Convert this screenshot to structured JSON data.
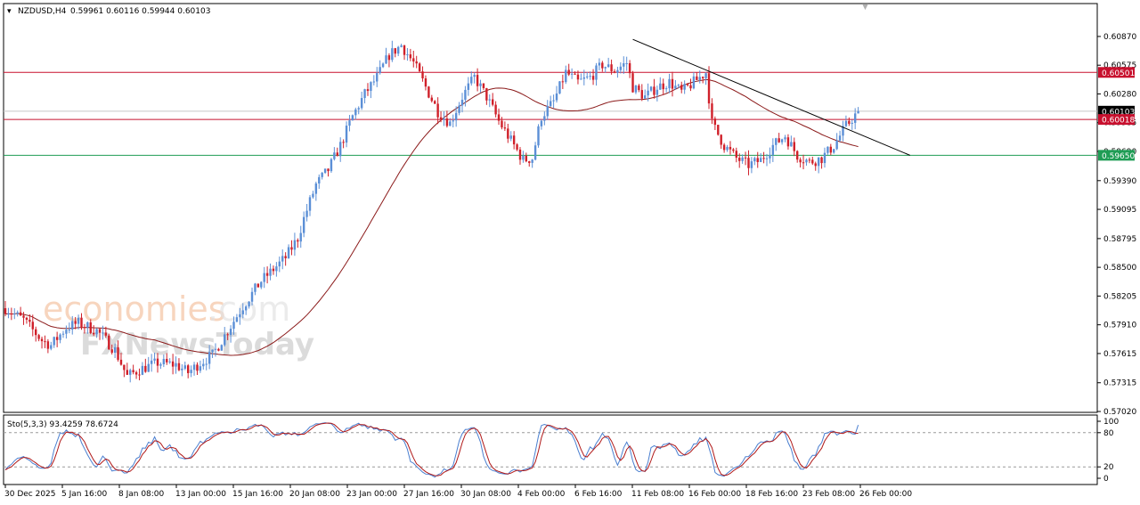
{
  "header": {
    "symbol": "NZDUSD,H4",
    "ohlc": "0.59961 0.60116 0.59944 0.60103"
  },
  "watermark": {
    "part1": "economies",
    "part2": ".com",
    "part3": "FXNewsToday"
  },
  "colors": {
    "bull": "#5b8fd6",
    "bear": "#d0202a",
    "ma": "#8b1a1a",
    "resistance": "#c8102e",
    "support": "#1f9d55",
    "price": "#000000",
    "stoch_main": "#4a7fd0",
    "stoch_signal": "#b01818"
  },
  "stochastic": {
    "label": "Sto(5,3,3) 93.4259 78.6724"
  },
  "chart_data": [
    {
      "type": "candlestick",
      "title": "NZDUSD,H4",
      "ylim": [
        0.5702,
        0.6097
      ],
      "y_ticks": [
        "0.60870",
        "0.60575",
        "0.60280",
        "0.59985",
        "0.59690",
        "0.59390",
        "0.59095",
        "0.58795",
        "0.58500",
        "0.58205",
        "0.57910",
        "0.57615",
        "0.57315",
        "0.57020"
      ],
      "x_ticks": [
        "30 Dec 2025",
        "5 Jan 16:00",
        "8 Jan 08:00",
        "13 Jan 00:00",
        "15 Jan 16:00",
        "20 Jan 08:00",
        "23 Jan 00:00",
        "27 Jan 16:00",
        "30 Jan 08:00",
        "4 Feb 00:00",
        "6 Feb 16:00",
        "11 Feb 08:00",
        "16 Feb 00:00",
        "18 Feb 16:00",
        "23 Feb 08:00",
        "26 Feb 00:00"
      ],
      "close_path": [
        [
          0,
          0.5808
        ],
        [
          6,
          0.5796
        ],
        [
          12,
          0.5775
        ],
        [
          15,
          0.577
        ],
        [
          20,
          0.5788
        ],
        [
          24,
          0.5793
        ],
        [
          30,
          0.5785
        ],
        [
          36,
          0.5765
        ],
        [
          40,
          0.5738
        ],
        [
          44,
          0.5745
        ],
        [
          50,
          0.5752
        ],
        [
          56,
          0.575
        ],
        [
          60,
          0.5742
        ],
        [
          64,
          0.5752
        ],
        [
          68,
          0.576
        ],
        [
          74,
          0.579
        ],
        [
          78,
          0.581
        ],
        [
          84,
          0.5836
        ],
        [
          88,
          0.5848
        ],
        [
          92,
          0.586
        ],
        [
          96,
          0.588
        ],
        [
          98,
          0.59
        ],
        [
          102,
          0.5935
        ],
        [
          106,
          0.595
        ],
        [
          110,
          0.5975
        ],
        [
          114,
          0.6005
        ],
        [
          118,
          0.6028
        ],
        [
          122,
          0.6045
        ],
        [
          126,
          0.6068
        ],
        [
          130,
          0.6078
        ],
        [
          134,
          0.606
        ],
        [
          138,
          0.6035
        ],
        [
          142,
          0.601
        ],
        [
          146,
          0.5998
        ],
        [
          150,
          0.6025
        ],
        [
          154,
          0.6045
        ],
        [
          158,
          0.6025
        ],
        [
          162,
          0.6
        ],
        [
          166,
          0.598
        ],
        [
          170,
          0.596
        ],
        [
          173,
          0.5962
        ],
        [
          176,
          0.6005
        ],
        [
          180,
          0.602
        ],
        [
          184,
          0.605
        ],
        [
          188,
          0.604
        ],
        [
          192,
          0.6045
        ],
        [
          196,
          0.6058
        ],
        [
          200,
          0.6052
        ],
        [
          204,
          0.606
        ],
        [
          206,
          0.6035
        ],
        [
          210,
          0.6025
        ],
        [
          214,
          0.6035
        ],
        [
          218,
          0.604
        ],
        [
          222,
          0.603
        ],
        [
          226,
          0.604
        ],
        [
          230,
          0.605
        ],
        [
          232,
          0.5998
        ],
        [
          236,
          0.5975
        ],
        [
          240,
          0.5962
        ],
        [
          244,
          0.5955
        ],
        [
          248,
          0.596
        ],
        [
          252,
          0.5975
        ],
        [
          256,
          0.5985
        ],
        [
          260,
          0.5965
        ],
        [
          264,
          0.5958
        ],
        [
          268,
          0.5962
        ],
        [
          272,
          0.5975
        ],
        [
          276,
          0.5995
        ],
        [
          280,
          0.601
        ]
      ],
      "price_lines": [
        {
          "label": "0.60501",
          "value": 0.60501,
          "role": "resistance"
        },
        {
          "label": "0.60103",
          "value": 0.60103,
          "role": "price"
        },
        {
          "label": "0.60018",
          "value": 0.60018,
          "role": "resistance"
        },
        {
          "label": "0.59650",
          "value": 0.5965,
          "role": "support"
        }
      ],
      "trendline": [
        [
          206,
          0.6084
        ],
        [
          297,
          0.5965
        ]
      ]
    },
    {
      "type": "line",
      "title": "Sto(5,3,3)",
      "ylim": [
        0,
        100
      ],
      "y_ticks": [
        "100",
        "80",
        "20",
        "0"
      ],
      "levels": [
        80,
        20
      ],
      "series": [
        {
          "name": "%K",
          "last": 93.4259
        },
        {
          "name": "%D",
          "last": 78.6724
        }
      ]
    }
  ]
}
